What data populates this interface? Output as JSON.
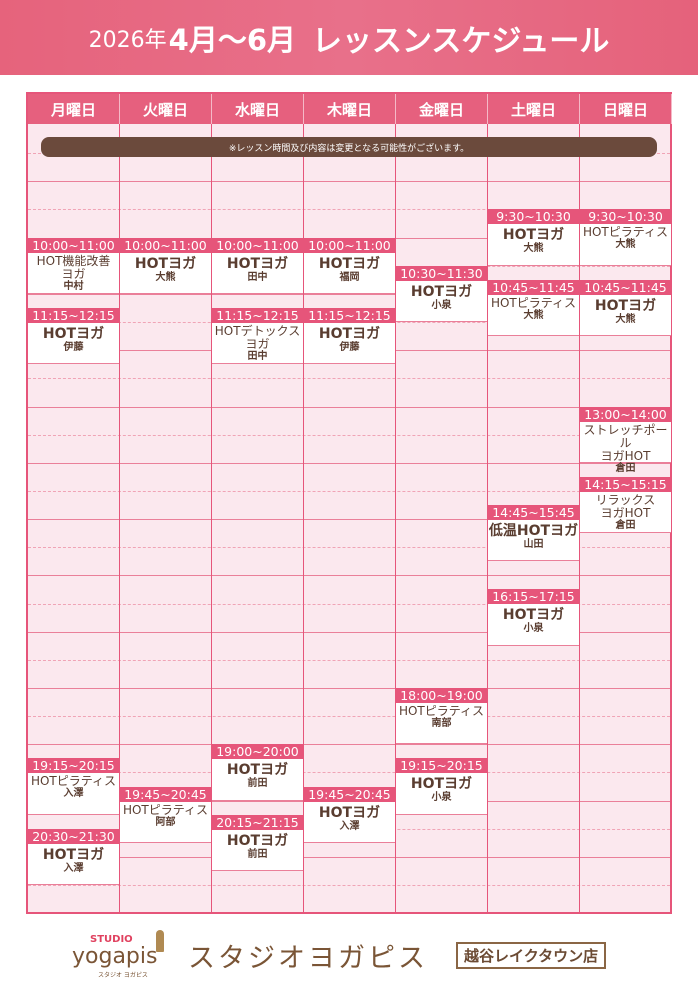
{
  "title": {
    "year": "2026年",
    "months": "4月～6月",
    "label": "レッスンスケジュール"
  },
  "notice": "※レッスン時間及び内容は変更となる可能性がございます。",
  "colors": {
    "accent": "#e6557a",
    "cell_bg": "#fbe8ee",
    "text": "#5a3d30",
    "notice_bg": "#6b4a3c"
  },
  "days": [
    {
      "label": "月曜日",
      "lessons": [
        {
          "time": "10:00~11:00",
          "name": "HOT機能改善\nヨガ",
          "instructor": "中村"
        },
        {
          "time": "11:15~12:15",
          "name": "HOTヨガ",
          "instructor": "伊藤"
        },
        {
          "time": "19:15~20:15",
          "name": "HOTピラティス",
          "instructor": "入澤"
        },
        {
          "time": "20:30~21:30",
          "name": "HOTヨガ",
          "instructor": "入澤"
        }
      ]
    },
    {
      "label": "火曜日",
      "lessons": [
        {
          "time": "10:00~11:00",
          "name": "HOTヨガ",
          "instructor": "大熊"
        },
        {
          "time": "19:45~20:45",
          "name": "HOTピラティス",
          "instructor": "阿部"
        }
      ]
    },
    {
      "label": "水曜日",
      "lessons": [
        {
          "time": "10:00~11:00",
          "name": "HOTヨガ",
          "instructor": "田中"
        },
        {
          "time": "11:15~12:15",
          "name": "HOTデトックス\nヨガ",
          "instructor": "田中"
        },
        {
          "time": "19:00~20:00",
          "name": "HOTヨガ",
          "instructor": "前田"
        },
        {
          "time": "20:15~21:15",
          "name": "HOTヨガ",
          "instructor": "前田"
        }
      ]
    },
    {
      "label": "木曜日",
      "lessons": [
        {
          "time": "10:00~11:00",
          "name": "HOTヨガ",
          "instructor": "福岡"
        },
        {
          "time": "11:15~12:15",
          "name": "HOTヨガ",
          "instructor": "伊藤"
        },
        {
          "time": "19:45~20:45",
          "name": "HOTヨガ",
          "instructor": "入澤"
        }
      ]
    },
    {
      "label": "金曜日",
      "lessons": [
        {
          "time": "10:30~11:30",
          "name": "HOTヨガ",
          "instructor": "小泉"
        },
        {
          "time": "18:00~19:00",
          "name": "HOTピラティス",
          "instructor": "南部"
        },
        {
          "time": "19:15~20:15",
          "name": "HOTヨガ",
          "instructor": "小泉"
        }
      ]
    },
    {
      "label": "土曜日",
      "lessons": [
        {
          "time": "9:30~10:30",
          "name": "HOTヨガ",
          "instructor": "大熊"
        },
        {
          "time": "10:45~11:45",
          "name": "HOTピラティス",
          "instructor": "大熊"
        },
        {
          "time": "14:45~15:45",
          "name": "低温HOTヨガ",
          "instructor": "山田"
        },
        {
          "time": "16:15~17:15",
          "name": "HOTヨガ",
          "instructor": "小泉"
        }
      ]
    },
    {
      "label": "日曜日",
      "lessons": [
        {
          "time": "9:30~10:30",
          "name": "HOTピラティス",
          "instructor": "大熊"
        },
        {
          "time": "10:45~11:45",
          "name": "HOTヨガ",
          "instructor": "大熊"
        },
        {
          "time": "13:00~14:00",
          "name": "ストレッチポール\nヨガHOT",
          "instructor": "倉田"
        },
        {
          "time": "14:15~15:15",
          "name": "リラックス\nヨガHOT",
          "instructor": "倉田"
        }
      ]
    }
  ],
  "footer": {
    "logo": {
      "studio": "STUDIO",
      "name": "yogapis",
      "sub": "スタジオ ヨガピス"
    },
    "brand": "スタジオヨガピス",
    "branch": "越谷レイクタウン店"
  }
}
